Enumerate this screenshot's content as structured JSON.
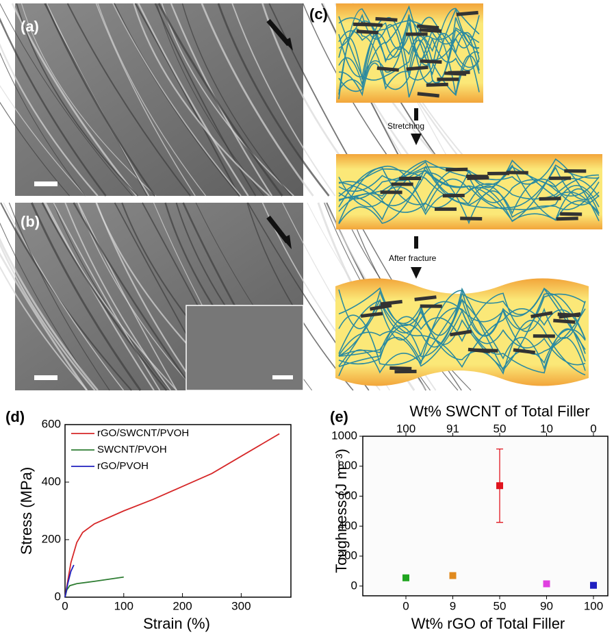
{
  "panels": [
    {
      "label": "(a)"
    },
    {
      "label": "(b)"
    },
    {
      "label": "(c)",
      "steps": [
        "Stretching",
        "After fracture"
      ]
    }
  ],
  "chart_data": [
    {
      "type": "line",
      "panel_label": "(d)",
      "x_label": "Strain (%)",
      "y_label": "Stress (MPa)",
      "xlim": [
        0,
        380
      ],
      "ylim": [
        0,
        600
      ],
      "xticks": [
        0,
        100,
        200,
        300
      ],
      "yticks": [
        0,
        200,
        400,
        600
      ],
      "legend": "upper left",
      "series": [
        {
          "name": "rGO/SWCNT/PVOH",
          "color": "#d62728",
          "x": [
            0,
            5,
            10,
            20,
            30,
            50,
            100,
            150,
            200,
            250,
            300,
            365
          ],
          "values": [
            0,
            60,
            120,
            190,
            225,
            255,
            300,
            340,
            385,
            430,
            490,
            568
          ]
        },
        {
          "name": "SWCNT/PVOH",
          "color": "#2e7d32",
          "x": [
            0,
            3,
            8,
            20,
            50,
            100
          ],
          "values": [
            0,
            25,
            40,
            47,
            55,
            70
          ]
        },
        {
          "name": "rGO/PVOH",
          "color": "#1f1fbf",
          "x": [
            0,
            5,
            10,
            15
          ],
          "values": [
            0,
            50,
            90,
            112
          ]
        }
      ]
    },
    {
      "type": "errorbar",
      "panel_label": "(e)",
      "x_label": "Wt% rGO of Total Filler",
      "top_label": "Wt% SWCNT of Total Filler",
      "y_label": "Toughness (J m⁻³)",
      "categories": [
        "0",
        "9",
        "50",
        "90",
        "100"
      ],
      "top_categories": [
        "100",
        "91",
        "50",
        "10",
        "0"
      ],
      "values": [
        55,
        70,
        670,
        15,
        5
      ],
      "errors": [
        10,
        20,
        245,
        8,
        8
      ],
      "colors": [
        "#1fa51f",
        "#e08a1e",
        "#e0141e",
        "#e040e0",
        "#2020c0"
      ],
      "ylim": [
        -65,
        1000
      ],
      "yticks": [
        0,
        200,
        400,
        600,
        800,
        1000
      ]
    }
  ]
}
